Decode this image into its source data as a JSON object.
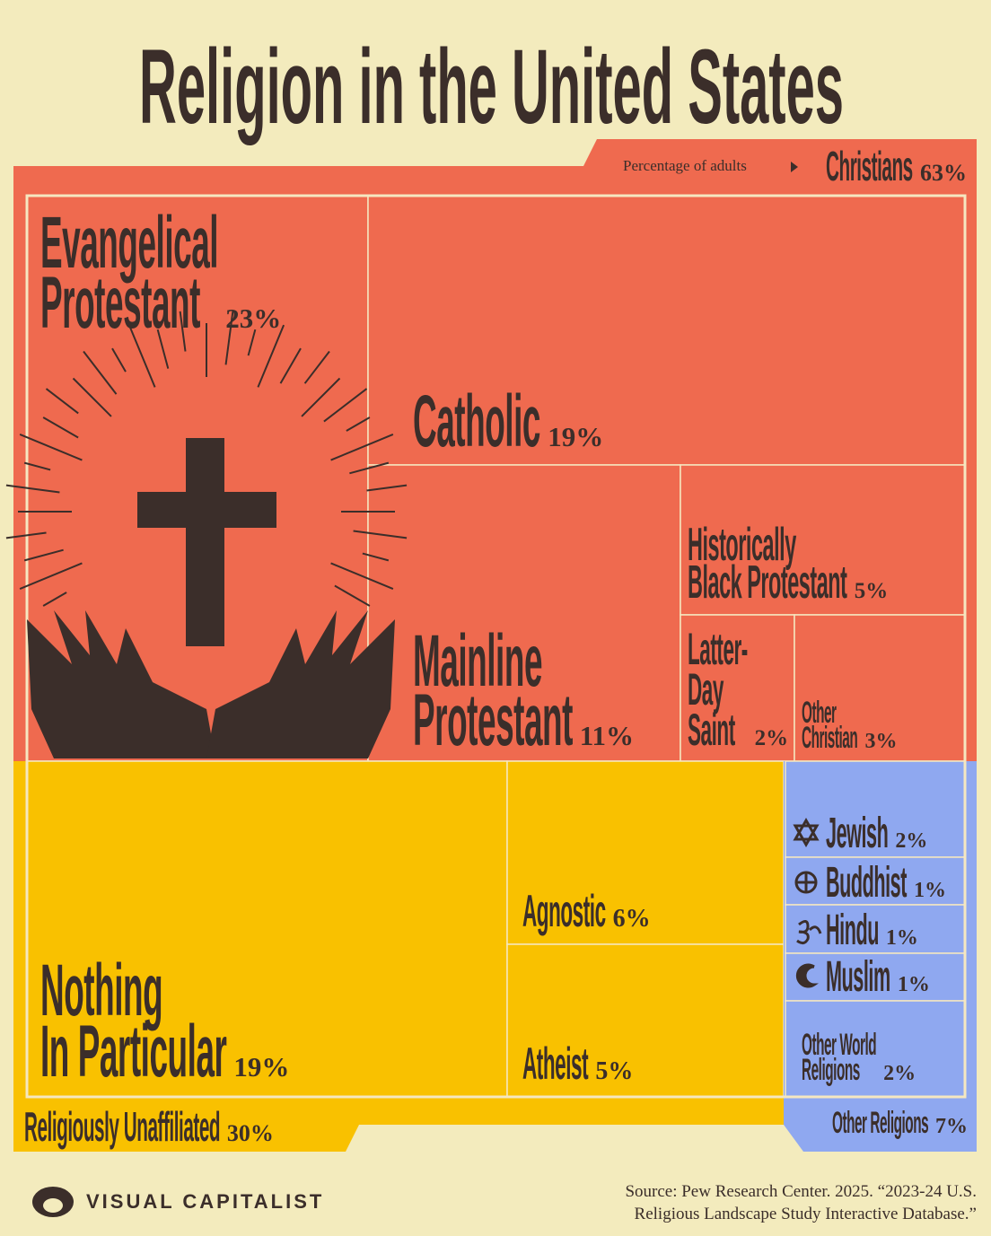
{
  "chart_data": {
    "type": "treemap",
    "title": "Religion in the United States",
    "subtitle": "Percentage of adults",
    "groups": [
      {
        "name": "Christians",
        "value": 63,
        "value_label": "63%",
        "color": "#ef6a4f",
        "categories": [
          "Evangelical\nProtestant",
          "Catholic",
          "Mainline\nProtestant",
          "Historically\nBlack Protestant",
          "Latter-\nDay\nSaint",
          "Other\nChristian"
        ],
        "values": [
          23,
          19,
          11,
          5,
          2,
          3
        ],
        "value_labels": [
          "23%",
          "19%",
          "11%",
          "5%",
          "2%",
          "3%"
        ]
      },
      {
        "name": "Religiously Unaffiliated",
        "value": 30,
        "value_label": "30%",
        "color": "#f9c100",
        "categories": [
          "Nothing\nIn Particular",
          "Agnostic",
          "Atheist"
        ],
        "values": [
          19,
          6,
          5
        ],
        "value_labels": [
          "19%",
          "6%",
          "5%"
        ]
      },
      {
        "name": "Other Religions",
        "value": 7,
        "value_label": "7%",
        "color": "#8fa8f0",
        "categories": [
          "Jewish",
          "Buddhist",
          "Hindu",
          "Muslim",
          "Other World\nReligions"
        ],
        "values": [
          2,
          1,
          1,
          1,
          2
        ],
        "value_labels": [
          "2%",
          "1%",
          "1%",
          "1%",
          "2%"
        ]
      }
    ]
  },
  "source": "Source: Pew Research Center. 2025. “2023-24 U.S.\nReligious Landscape Study Interactive Database.”",
  "brand": "VISUAL CAPITALIST"
}
